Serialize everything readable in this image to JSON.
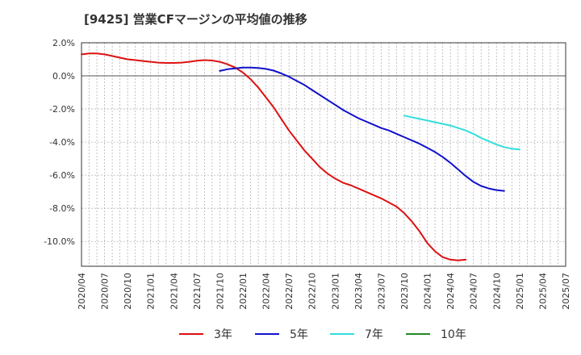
{
  "chart_data": {
    "type": "line",
    "title": "[9425]  営業CFマージンの平均値の推移",
    "xlabel": "",
    "ylabel": "",
    "ylim": [
      -11.5,
      2.0
    ],
    "y_ticks": [
      2.0,
      0.0,
      -2.0,
      -4.0,
      -6.0,
      -8.0,
      -10.0
    ],
    "y_tick_labels": [
      "2.0%",
      "0.0%",
      "-2.0%",
      "-4.0%",
      "-6.0%",
      "-8.0%",
      "-10.0%"
    ],
    "x_tick_labels": [
      "2020/04",
      "2020/07",
      "2020/10",
      "2021/01",
      "2021/04",
      "2021/07",
      "2021/10",
      "2022/01",
      "2022/04",
      "2022/07",
      "2022/10",
      "2023/01",
      "2023/04",
      "2023/07",
      "2023/10",
      "2024/01",
      "2024/04",
      "2024/07",
      "2024/10",
      "2025/01",
      "2025/04",
      "2025/07"
    ],
    "grid": true,
    "legend_position": "bottom",
    "series": [
      {
        "name": "3年",
        "color": "#dd1111",
        "start": "2020/04",
        "values": [
          1.3,
          1.35,
          1.35,
          1.3,
          1.2,
          1.1,
          1.0,
          0.95,
          0.9,
          0.85,
          0.8,
          0.78,
          0.78,
          0.8,
          0.85,
          0.92,
          0.95,
          0.93,
          0.85,
          0.7,
          0.5,
          0.2,
          -0.2,
          -0.7,
          -1.3,
          -1.9,
          -2.6,
          -3.3,
          -3.9,
          -4.5,
          -5.0,
          -5.5,
          -5.9,
          -6.2,
          -6.45,
          -6.6,
          -6.8,
          -7.0,
          -7.2,
          -7.4,
          -7.65,
          -7.9,
          -8.3,
          -8.8,
          -9.4,
          -10.1,
          -10.6,
          -10.95,
          -11.1,
          -11.15,
          -11.1
        ]
      },
      {
        "name": "5年",
        "color": "#1111cc",
        "start": "2021/10",
        "values": [
          0.3,
          0.4,
          0.45,
          0.5,
          0.5,
          0.48,
          0.42,
          0.32,
          0.15,
          -0.05,
          -0.3,
          -0.55,
          -0.85,
          -1.15,
          -1.45,
          -1.75,
          -2.05,
          -2.3,
          -2.55,
          -2.75,
          -2.95,
          -3.15,
          -3.3,
          -3.5,
          -3.7,
          -3.9,
          -4.1,
          -4.35,
          -4.6,
          -4.9,
          -5.25,
          -5.65,
          -6.05,
          -6.4,
          -6.65,
          -6.8,
          -6.9,
          -6.95
        ]
      },
      {
        "name": "7年",
        "color": "#33dddd",
        "start": "2023/10",
        "values": [
          -2.4,
          -2.5,
          -2.6,
          -2.7,
          -2.8,
          -2.9,
          -3.0,
          -3.15,
          -3.3,
          -3.5,
          -3.75,
          -3.95,
          -4.15,
          -4.3,
          -4.4,
          -4.45
        ]
      },
      {
        "name": "10年",
        "color": "#228822",
        "start": "",
        "values": []
      }
    ]
  }
}
